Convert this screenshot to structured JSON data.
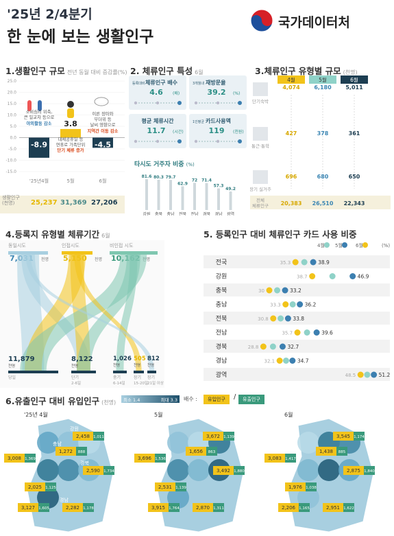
{
  "header": {
    "period": "'25년 2/4분기",
    "title": "한 눈에 보는 생활인구",
    "brand": "국가데이터처"
  },
  "colors": {
    "navy": "#1d3e52",
    "gold": "#f2c31a",
    "teal": "#8fd2c8",
    "blue": "#3c7fb0",
    "lightblue": "#a8cfe0",
    "gray": "#d9d9d9"
  },
  "sec1": {
    "title": "1.생활인구 규모",
    "sub": "전년 동월 대비 증감률(%)",
    "ylim": [
      -15,
      25
    ],
    "yticks": [
      "25.0",
      "20.0",
      "15.0",
      "10.0",
      "5.0",
      "0.0",
      "-5.0",
      "-10.0",
      "-15.0"
    ],
    "months": [
      "'25년4월",
      "5월",
      "6월"
    ],
    "values": [
      -8.9,
      3.8,
      -4.5
    ],
    "value_labels": [
      "-8.9",
      "3.8",
      "-4.5"
    ],
    "notes": [
      {
        "a": "소비심리 위축,",
        "b": "큰 일교차 등으로",
        "c": "야외활동 감소"
      },
      {
        "a": "대체공휴일 등",
        "b": "연휴로 가족단위",
        "c": "단기 체류 증가"
      },
      {
        "a": "이른 장마와",
        "b": "무더위 등",
        "c": "날씨 영향으로",
        "d": "지역간 이동 감소"
      }
    ],
    "row_label": "생활인구",
    "row_unit": "(천명)",
    "row_values": [
      "25,237",
      "31,369",
      "27,206"
    ]
  },
  "sec2": {
    "title": "2. 체류인구 특성",
    "month": "6월",
    "cards": [
      {
        "label": "등록대비",
        "label2": "체류인구 배수",
        "value": "4.6",
        "unit": "(배)"
      },
      {
        "label": "3개월내",
        "label2": "재방문율",
        "value": "39.2",
        "unit": "(%)"
      },
      {
        "label": "",
        "label2": "평균 체류시간",
        "value": "11.7",
        "unit": "(시간)"
      },
      {
        "label": "1인평균",
        "label2": "카드사용액",
        "value": "119",
        "unit": "(천원)"
      }
    ],
    "ratio_title": "타시도 거주자 비중",
    "ratio_unit": "(%)"
  },
  "sec3": {
    "title": "3.체류인구 유형별 규모",
    "sub": "(천명)",
    "months": [
      "4월",
      "5월",
      "6월"
    ],
    "rows": [
      {
        "label": "단기숙박",
        "values": [
          "4,074",
          "6,180",
          "5,011"
        ]
      },
      {
        "label": "통근·통학",
        "values": [
          "427",
          "378",
          "361"
        ]
      },
      {
        "label": "장기 실거주",
        "values": [
          "696",
          "680",
          "650"
        ]
      },
      {
        "label": "전체",
        "label2": "체류인구",
        "values": [
          "20,383",
          "26,510",
          "22,343"
        ]
      }
    ]
  },
  "sec4": {
    "title": "4.등록지 유형별 체류기간",
    "month": "6월",
    "top": [
      {
        "label": "동일시도",
        "value": "7,031",
        "unit": "천명"
      },
      {
        "label": "인접시도",
        "value": "5,150",
        "unit": "천명"
      },
      {
        "label": "비인접 시도",
        "value": "10,162",
        "unit": "천명"
      }
    ],
    "bottom": [
      {
        "label": "당일",
        "value": "11,879",
        "unit": "천명"
      },
      {
        "label": "단기",
        "label2": "2-6일",
        "value": "8,122",
        "unit": "천명"
      },
      {
        "label": "중기",
        "label2": "6-14일",
        "value": "1,026",
        "unit": "천명"
      },
      {
        "label": "장기",
        "label2": "15-20일",
        "value": "505",
        "unit": "천명"
      },
      {
        "label": "장기",
        "label2": "21일 이상",
        "value": "812",
        "unit": "천명"
      }
    ]
  },
  "sec6": {
    "title": "6.유출인구 대비 유입인구",
    "sub": "(천명)",
    "legend_min": "최소 1.4",
    "legend_max": "최대 3.3",
    "ratio_label": "배수 :",
    "in_label": "유입인구",
    "out_label": "유출인구",
    "maps": [
      {
        "title": "'25년 4월",
        "regions": [
          "강원",
          "충북",
          "충남",
          "경북",
          "전북",
          "전남",
          "경남"
        ],
        "pairs": [
          [
            "2,458",
            "1,011"
          ],
          [
            "3,008",
            "1,369"
          ],
          [
            "1,272",
            "888"
          ],
          [
            "2,590",
            "1,734"
          ],
          [
            "2,025",
            "1,125"
          ],
          [
            "3,127",
            "1,605"
          ],
          [
            "2,282",
            "1,178"
          ]
        ]
      },
      {
        "title": "5월",
        "pairs": [
          [
            "3,672",
            "1,139"
          ],
          [
            "3,696",
            "1,536"
          ],
          [
            "1,656",
            "863"
          ],
          [
            "3,492",
            "1,880"
          ],
          [
            "2,531",
            "1,139"
          ],
          [
            "3,915",
            "1,764"
          ],
          [
            "2,870",
            "1,311"
          ]
        ]
      },
      {
        "title": "6월",
        "pairs": [
          [
            "3,545",
            "1,174"
          ],
          [
            "3,083",
            "1,417"
          ],
          [
            "1,438",
            "885"
          ],
          [
            "2,875",
            "1,840"
          ],
          [
            "1,976",
            "1,038"
          ],
          [
            "2,206",
            "1,165"
          ],
          [
            "2,951",
            "1,622"
          ]
        ]
      }
    ]
  },
  "chart_data": [
    {
      "type": "bar",
      "title": "1.생활인구 규모",
      "subtitle": "전년 동월 대비 증감률(%)",
      "categories": [
        "'25년4월",
        "5월",
        "6월"
      ],
      "values": [
        -8.9,
        3.8,
        -4.5
      ],
      "ylim": [
        -15,
        25
      ]
    },
    {
      "type": "bar",
      "title": "타시도 거주자 비중",
      "subtitle": "(%)",
      "categories": [
        "강원",
        "충북",
        "충남",
        "전북",
        "전남",
        "경북",
        "경남",
        "광역"
      ],
      "values": [
        81.6,
        80.3,
        79.7,
        62.9,
        72.0,
        71.4,
        57.3,
        49.2
      ]
    },
    {
      "type": "scatter",
      "title": "5. 등록인구 대비 체류인구 카드 사용 비중",
      "legend": [
        "4월",
        "5월",
        "6월"
      ],
      "legend_unit": "(%)",
      "categories": [
        "전국",
        "강원",
        "충북",
        "충남",
        "전북",
        "전남",
        "경북",
        "경남",
        "광역"
      ],
      "series": [
        {
          "name": "6월",
          "values": [
            38.9,
            46.9,
            33.2,
            36.2,
            33.8,
            39.6,
            32.7,
            34.7,
            51.2
          ]
        }
      ],
      "range_lows": [
        35.3,
        38.7,
        30.0,
        33.3,
        30.8,
        35.7,
        28.8,
        32.1,
        48.5
      ]
    }
  ]
}
